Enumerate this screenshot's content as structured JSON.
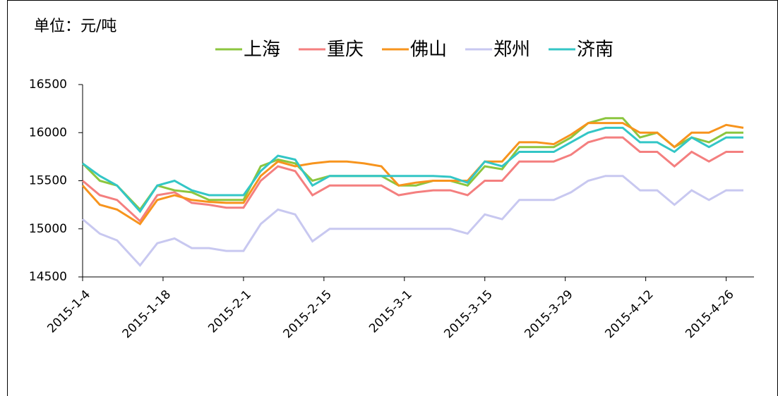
{
  "chart_data": {
    "type": "line",
    "unit": "单位：元/吨",
    "x": [
      "2015-1-4",
      "2015-1-7",
      "2015-1-10",
      "2015-1-14",
      "2015-1-17",
      "2015-1-20",
      "2015-1-23",
      "2015-1-26",
      "2015-1-29",
      "2015-2-1",
      "2015-2-4",
      "2015-2-7",
      "2015-2-10",
      "2015-2-13",
      "2015-2-16",
      "2015-2-19",
      "2015-2-22",
      "2015-2-25",
      "2015-2-28",
      "2015-3-3",
      "2015-3-6",
      "2015-3-9",
      "2015-3-12",
      "2015-3-15",
      "2015-3-18",
      "2015-3-21",
      "2015-3-24",
      "2015-3-27",
      "2015-3-30",
      "2015-4-2",
      "2015-4-5",
      "2015-4-8",
      "2015-4-11",
      "2015-4-14",
      "2015-4-17",
      "2015-4-20",
      "2015-4-23",
      "2015-4-26",
      "2015-4-29"
    ],
    "series": [
      {
        "name": "上海",
        "color": "#8cc63f",
        "values": [
          15680,
          15500,
          15450,
          15200,
          15450,
          15400,
          15380,
          15300,
          15300,
          15300,
          15650,
          15720,
          15680,
          15500,
          15550,
          15550,
          15550,
          15550,
          15450,
          15450,
          15500,
          15500,
          15450,
          15650,
          15620,
          15850,
          15850,
          15850,
          15950,
          16100,
          16150,
          16150,
          15950,
          16000,
          15850,
          15950,
          15900,
          16000,
          16000
        ]
      },
      {
        "name": "重庆",
        "color": "#f47f7f",
        "values": [
          15500,
          15350,
          15300,
          15080,
          15350,
          15380,
          15270,
          15250,
          15220,
          15220,
          15500,
          15650,
          15600,
          15350,
          15450,
          15450,
          15450,
          15450,
          15350,
          15380,
          15400,
          15400,
          15350,
          15500,
          15500,
          15700,
          15700,
          15700,
          15770,
          15900,
          15950,
          15950,
          15800,
          15800,
          15650,
          15800,
          15700,
          15800,
          15800
        ]
      },
      {
        "name": "佛山",
        "color": "#f7941d",
        "values": [
          15450,
          15250,
          15200,
          15050,
          15300,
          15350,
          15300,
          15280,
          15270,
          15270,
          15550,
          15700,
          15650,
          15680,
          15700,
          15700,
          15680,
          15650,
          15450,
          15480,
          15500,
          15500,
          15500,
          15700,
          15700,
          15900,
          15900,
          15880,
          15980,
          16100,
          16100,
          16100,
          16000,
          16000,
          15850,
          16000,
          16000,
          16080,
          16050
        ]
      },
      {
        "name": "郑州",
        "color": "#c8c8f0",
        "values": [
          15100,
          14950,
          14880,
          14620,
          14850,
          14900,
          14800,
          14800,
          14770,
          14770,
          15050,
          15200,
          15150,
          14870,
          15000,
          15000,
          15000,
          15000,
          15000,
          15000,
          15000,
          15000,
          14950,
          15150,
          15100,
          15300,
          15300,
          15300,
          15380,
          15500,
          15550,
          15550,
          15400,
          15400,
          15250,
          15400,
          15300,
          15400,
          15400
        ]
      },
      {
        "name": "济南",
        "color": "#33c6c6",
        "values": [
          15680,
          15550,
          15450,
          15180,
          15450,
          15500,
          15400,
          15350,
          15350,
          15350,
          15600,
          15760,
          15720,
          15450,
          15550,
          15550,
          15550,
          15550,
          15550,
          15550,
          15550,
          15540,
          15480,
          15700,
          15650,
          15800,
          15800,
          15800,
          15900,
          16000,
          16050,
          16050,
          15900,
          15900,
          15800,
          15950,
          15850,
          15950,
          15950
        ]
      }
    ],
    "xticks": [
      "2015-1-4",
      "2015-1-18",
      "2015-2-1",
      "2015-2-15",
      "2015-3-1",
      "2015-3-15",
      "2015-3-29",
      "2015-4-12",
      "2015-4-26"
    ],
    "ylim": [
      14500,
      16500
    ],
    "yticks": [
      14500,
      15000,
      15500,
      16000,
      16500
    ],
    "grid": false
  }
}
